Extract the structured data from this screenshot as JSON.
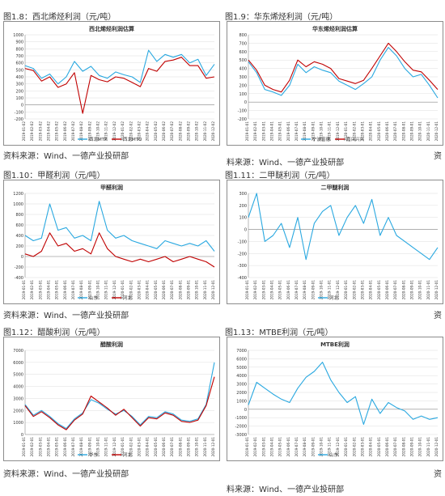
{
  "captions": [
    "图1.8：西北烯烃利润（元/吨）",
    "图1.9：华东烯烃利润（元/吨）",
    "图1.10：甲醛利润（元/吨）",
    "图1.11：二甲醚利润（元/吨）",
    "图1.12：醋酸利润（元/吨）",
    "图1.13：MTBE利润（元/吨）"
  ],
  "sources": [
    "资料来源：Wind、一德产业投研部",
    "料来源：Wind、一德产业投研部",
    "资",
    "资料来源：Wind、一德产业投研部",
    "资",
    "资料来源：Wind、一德产业投研部",
    "料来源：Wind、一德产业投研部",
    "资"
  ],
  "colors": {
    "blue": "#29a8e0",
    "red": "#c00000",
    "axis": "#888888",
    "grid": "#dddddd",
    "text": "#333333"
  },
  "chart_data": [
    {
      "type": "line",
      "title": "西北烯烃利润估算",
      "x": [
        "2019-01-02",
        "2019-02-02",
        "2019-03-02",
        "2019-04-02",
        "2019-05-02",
        "2019-06-02",
        "2019-07-02",
        "2019-08-02",
        "2019-09-02",
        "2019-10-02",
        "2019-11-02",
        "2019-12-02",
        "2020-01-02",
        "2020-02-02",
        "2020-03-02",
        "2020-04-02",
        "2020-05-02",
        "2020-06-02",
        "2020-07-02",
        "2020-08-02",
        "2020-09-02",
        "2020-10-02",
        "2020-11-02",
        "2020-12-02"
      ],
      "ylim": [
        -200,
        1000
      ],
      "yticks": [
        -200,
        -100,
        0,
        100,
        200,
        300,
        400,
        500,
        600,
        700,
        800,
        900,
        1000
      ],
      "series": [
        {
          "name": "西北MTP",
          "color": "#29a8e0",
          "values": [
            560,
            520,
            380,
            440,
            300,
            400,
            620,
            480,
            550,
            420,
            380,
            470,
            430,
            400,
            320,
            780,
            620,
            720,
            680,
            720,
            600,
            650,
            420,
            580
          ]
        },
        {
          "name": "西北MTO",
          "color": "#c00000",
          "values": [
            520,
            490,
            340,
            400,
            250,
            300,
            460,
            -120,
            420,
            360,
            330,
            400,
            380,
            320,
            260,
            520,
            480,
            620,
            640,
            680,
            560,
            560,
            380,
            400
          ]
        }
      ],
      "legend": "bottom"
    },
    {
      "type": "line",
      "title": "华东烯烃利润估算",
      "x": [
        "2019-01-01",
        "2019-02-01",
        "2019-03-01",
        "2019-04-01",
        "2019-05-01",
        "2019-06-01",
        "2019-07-01",
        "2019-08-01",
        "2019-09-01",
        "2019-10-01",
        "2019-11-01",
        "2019-12-01",
        "2020-01-01",
        "2020-02-01",
        "2020-03-01",
        "2020-04-01",
        "2020-05-01",
        "2020-06-01",
        "2020-07-01",
        "2020-08-01",
        "2020-09-01",
        "2020-10-01",
        "2020-11-01",
        "2020-12-01"
      ],
      "ylim": [
        -200,
        800
      ],
      "yticks": [
        -200,
        -100,
        0,
        100,
        200,
        300,
        400,
        500,
        600,
        700,
        800
      ],
      "series": [
        {
          "name": "宁波富德",
          "color": "#29a8e0",
          "values": [
            480,
            350,
            150,
            120,
            80,
            200,
            450,
            350,
            420,
            380,
            350,
            250,
            200,
            150,
            220,
            300,
            500,
            650,
            550,
            400,
            300,
            330,
            200,
            50
          ]
        },
        {
          "name": "嘉兴兴兴",
          "color": "#c00000",
          "values": [
            500,
            380,
            200,
            150,
            120,
            260,
            500,
            420,
            480,
            450,
            400,
            280,
            250,
            220,
            260,
            400,
            550,
            700,
            600,
            480,
            380,
            360,
            260,
            150
          ]
        }
      ],
      "legend": "bottom"
    },
    {
      "type": "line",
      "title": "甲醛利润",
      "x": [
        "2019-01-01",
        "2019-02-01",
        "2019-03-01",
        "2019-04-01",
        "2019-05-01",
        "2019-06-01",
        "2019-07-01",
        "2019-08-01",
        "2019-09-01",
        "2019-10-01",
        "2019-11-01",
        "2019-12-01",
        "2020-01-01",
        "2020-02-01",
        "2020-03-01",
        "2020-04-01",
        "2020-05-01",
        "2020-06-01",
        "2020-07-01",
        "2020-08-01",
        "2020-09-01",
        "2020-10-01",
        "2020-11-01",
        "2020-12-01"
      ],
      "ylim": [
        -400,
        1200
      ],
      "yticks": [
        -400,
        -200,
        0,
        200,
        400,
        600,
        800,
        1000,
        1200
      ],
      "series": [
        {
          "name": "山东",
          "color": "#29a8e0",
          "values": [
            400,
            300,
            350,
            1000,
            500,
            550,
            350,
            400,
            300,
            1050,
            500,
            350,
            400,
            300,
            250,
            200,
            150,
            300,
            250,
            200,
            250,
            200,
            300,
            100
          ]
        },
        {
          "name": "河北",
          "color": "#c00000",
          "values": [
            50,
            0,
            100,
            450,
            200,
            250,
            100,
            150,
            50,
            450,
            150,
            0,
            -50,
            -100,
            -50,
            -100,
            -50,
            0,
            -100,
            -50,
            0,
            -50,
            -100,
            -200
          ]
        }
      ],
      "legend": "bottom"
    },
    {
      "type": "line",
      "title": "二甲醚利润",
      "x": [
        "2019-01-01",
        "2019-02-01",
        "2019-03-01",
        "2019-04-01",
        "2019-05-01",
        "2019-06-01",
        "2019-07-01",
        "2019-08-01",
        "2019-09-01",
        "2019-10-01",
        "2019-11-01",
        "2019-12-01",
        "2020-01-01",
        "2020-02-01",
        "2020-03-01",
        "2020-04-01",
        "2020-05-01",
        "2020-06-01",
        "2020-07-01",
        "2020-08-01",
        "2020-09-01",
        "2020-10-01",
        "2020-11-01",
        "2020-12-01"
      ],
      "ylim": [
        -400,
        300
      ],
      "yticks": [
        -400,
        -300,
        -200,
        -100,
        0,
        100,
        200,
        300
      ],
      "series": [
        {
          "name": "河北",
          "color": "#29a8e0",
          "values": [
            100,
            300,
            -100,
            -50,
            50,
            -150,
            100,
            -250,
            50,
            150,
            200,
            -50,
            100,
            200,
            50,
            250,
            -50,
            100,
            -50,
            -100,
            -150,
            -200,
            -250,
            -150
          ]
        }
      ],
      "legend": "bottom"
    },
    {
      "type": "line",
      "title": "醋酸利润",
      "x": [
        "2019-01-01",
        "2019-02-01",
        "2019-03-01",
        "2019-04-01",
        "2019-05-01",
        "2019-06-01",
        "2019-07-01",
        "2019-08-01",
        "2019-09-01",
        "2019-10-01",
        "2019-11-01",
        "2019-12-01",
        "2020-01-01",
        "2020-02-01",
        "2020-03-01",
        "2020-04-01",
        "2020-05-01",
        "2020-06-01",
        "2020-07-01",
        "2020-08-01",
        "2020-09-01",
        "2020-10-01",
        "2020-11-01",
        "2020-12-01"
      ],
      "ylim": [
        0,
        7000
      ],
      "yticks": [
        0,
        1000,
        2000,
        3000,
        4000,
        5000,
        6000,
        7000
      ],
      "series": [
        {
          "name": "华东",
          "color": "#29a8e0",
          "values": [
            2500,
            1600,
            2000,
            1500,
            900,
            500,
            1300,
            1800,
            2900,
            2600,
            2100,
            1700,
            2000,
            1500,
            800,
            1500,
            1400,
            1900,
            1700,
            1200,
            1100,
            1300,
            2500,
            6000
          ]
        },
        {
          "name": "河北",
          "color": "#c00000",
          "values": [
            2400,
            1500,
            1900,
            1400,
            800,
            400,
            1200,
            1700,
            3200,
            2700,
            2200,
            1600,
            2100,
            1400,
            700,
            1400,
            1300,
            1800,
            1600,
            1100,
            1000,
            1200,
            2400,
            4800
          ]
        }
      ],
      "legend": "bottom"
    },
    {
      "type": "line",
      "title": "MTBE利润",
      "x": [
        "2019-01-01",
        "2019-02-01",
        "2019-03-01",
        "2019-04-01",
        "2019-05-01",
        "2019-06-01",
        "2019-07-01",
        "2019-08-01",
        "2019-09-01",
        "2019-10-01",
        "2019-11-01",
        "2019-12-01",
        "2020-01-01",
        "2020-02-01",
        "2020-03-01",
        "2020-04-01",
        "2020-05-01",
        "2020-06-01",
        "2020-07-01",
        "2020-08-01",
        "2020-09-01",
        "2020-10-01",
        "2020-11-01",
        "2020-12-01"
      ],
      "ylim": [
        -3000,
        7000
      ],
      "yticks": [
        -3000,
        -2000,
        -1000,
        0,
        1000,
        2000,
        3000,
        4000,
        5000,
        6000,
        7000
      ],
      "series": [
        {
          "name": "山东",
          "color": "#29a8e0",
          "values": [
            500,
            3200,
            2500,
            1800,
            1200,
            800,
            2500,
            3800,
            4500,
            5600,
            3500,
            2000,
            800,
            1500,
            -1800,
            1200,
            -500,
            800,
            200,
            -200,
            -1200,
            -800,
            -1200,
            -1000
          ]
        }
      ],
      "legend": "bottom"
    }
  ]
}
